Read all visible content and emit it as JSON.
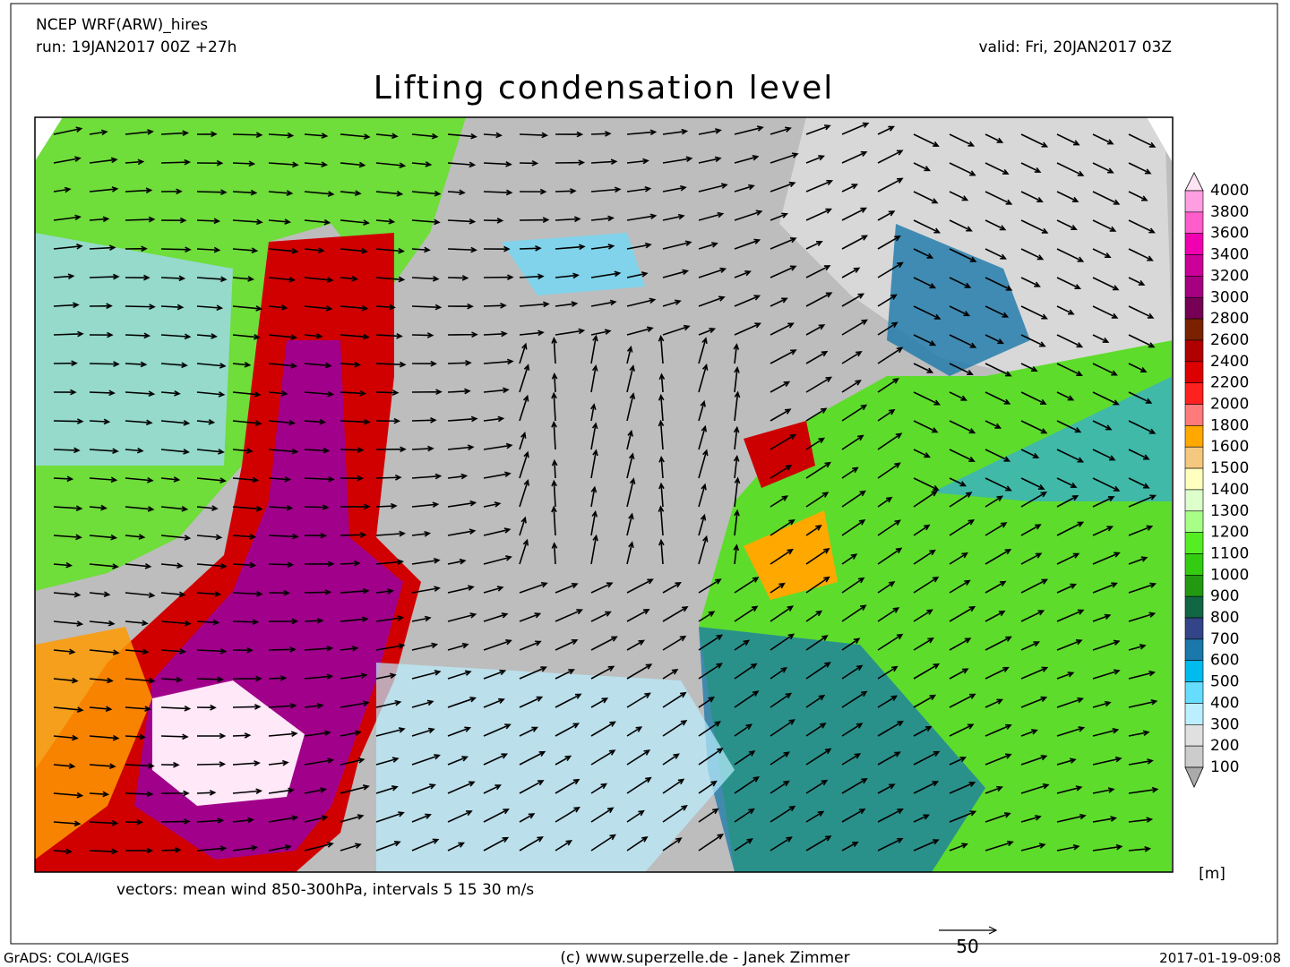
{
  "header": {
    "model": "NCEP WRF(ARW)_hires",
    "run": "run: 19JAN2017 00Z +27h",
    "valid": "valid: Fri, 20JAN2017 03Z",
    "title": "Lifting condensation level"
  },
  "legend": {
    "unit": "[m]",
    "levels": [
      4000,
      3800,
      3600,
      3400,
      3200,
      3000,
      2800,
      2600,
      2400,
      2200,
      2000,
      1800,
      1600,
      1500,
      1400,
      1300,
      1200,
      1100,
      1000,
      900,
      800,
      700,
      600,
      500,
      400,
      300,
      200,
      100
    ],
    "colors": [
      "#ffe4f4",
      "#ff9ee0",
      "#ff5ccc",
      "#f000b0",
      "#cc0099",
      "#a60080",
      "#760055",
      "#7a2200",
      "#b00000",
      "#dd0000",
      "#ff2020",
      "#ff7a7a",
      "#ffa800",
      "#f5c880",
      "#ffffc0",
      "#ddffcc",
      "#a8ff88",
      "#55ee22",
      "#33cc11",
      "#229911",
      "#116644",
      "#334488",
      "#1a78aa",
      "#00bbee",
      "#66ddff",
      "#bbeeff",
      "#e0e0e0",
      "#cccccc",
      "#aaaaaa"
    ]
  },
  "footer": {
    "vectors": "vectors: mean wind 850-300hPa, intervals 5 15 30 m/s",
    "scale": "50",
    "software": "GrADS: COLA/IGES",
    "credit": "(c) www.superzelle.de - Janek Zimmer",
    "timestamp": "2017-01-19-09:08"
  }
}
